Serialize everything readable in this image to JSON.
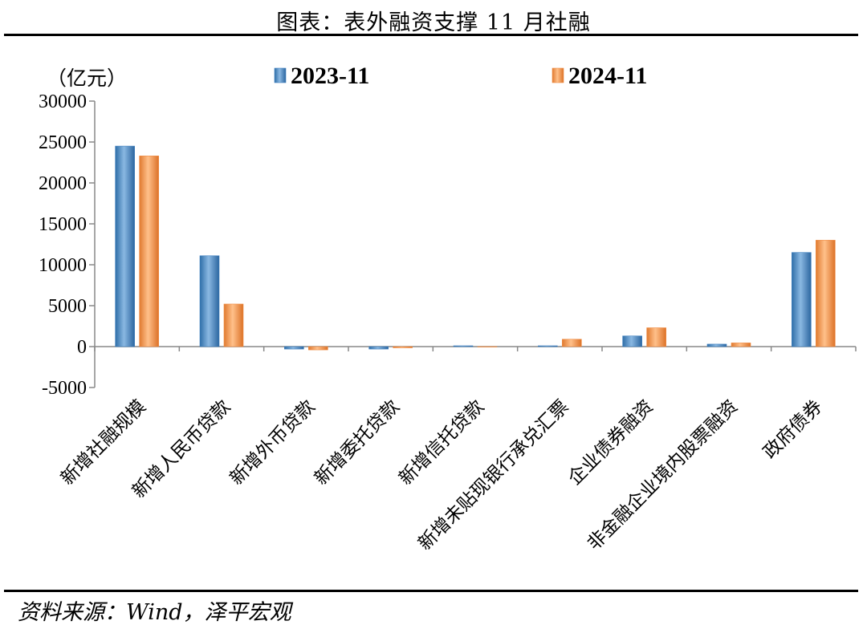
{
  "header": {
    "title": "图表：表外融资支撑 11 月社融"
  },
  "footer": {
    "source": "资料来源：Wind，泽平宏观"
  },
  "chart_data": {
    "type": "bar",
    "unit_label": "（亿元）",
    "categories": [
      "新增社融规模",
      "新增人民币贷款",
      "新增外币贷款",
      "新增委托贷款",
      "新增信托贷款",
      "新增未贴现银行承兑汇票",
      "企业债券融资",
      "非金融企业境内股票融资",
      "政府债券"
    ],
    "series": [
      {
        "name": "2023-11",
        "color": "#3d7fbf",
        "values": [
          24500,
          11100,
          -300,
          -300,
          100,
          100,
          1300,
          300,
          11500
        ]
      },
      {
        "name": "2024-11",
        "color": "#f08a40",
        "values": [
          23300,
          5200,
          -400,
          -150,
          0,
          900,
          2300,
          450,
          13000
        ]
      }
    ],
    "ylim": [
      -5000,
      30000
    ],
    "yticks": [
      -5000,
      0,
      5000,
      10000,
      15000,
      20000,
      25000,
      30000
    ],
    "legend_position": "top",
    "grid": false
  }
}
